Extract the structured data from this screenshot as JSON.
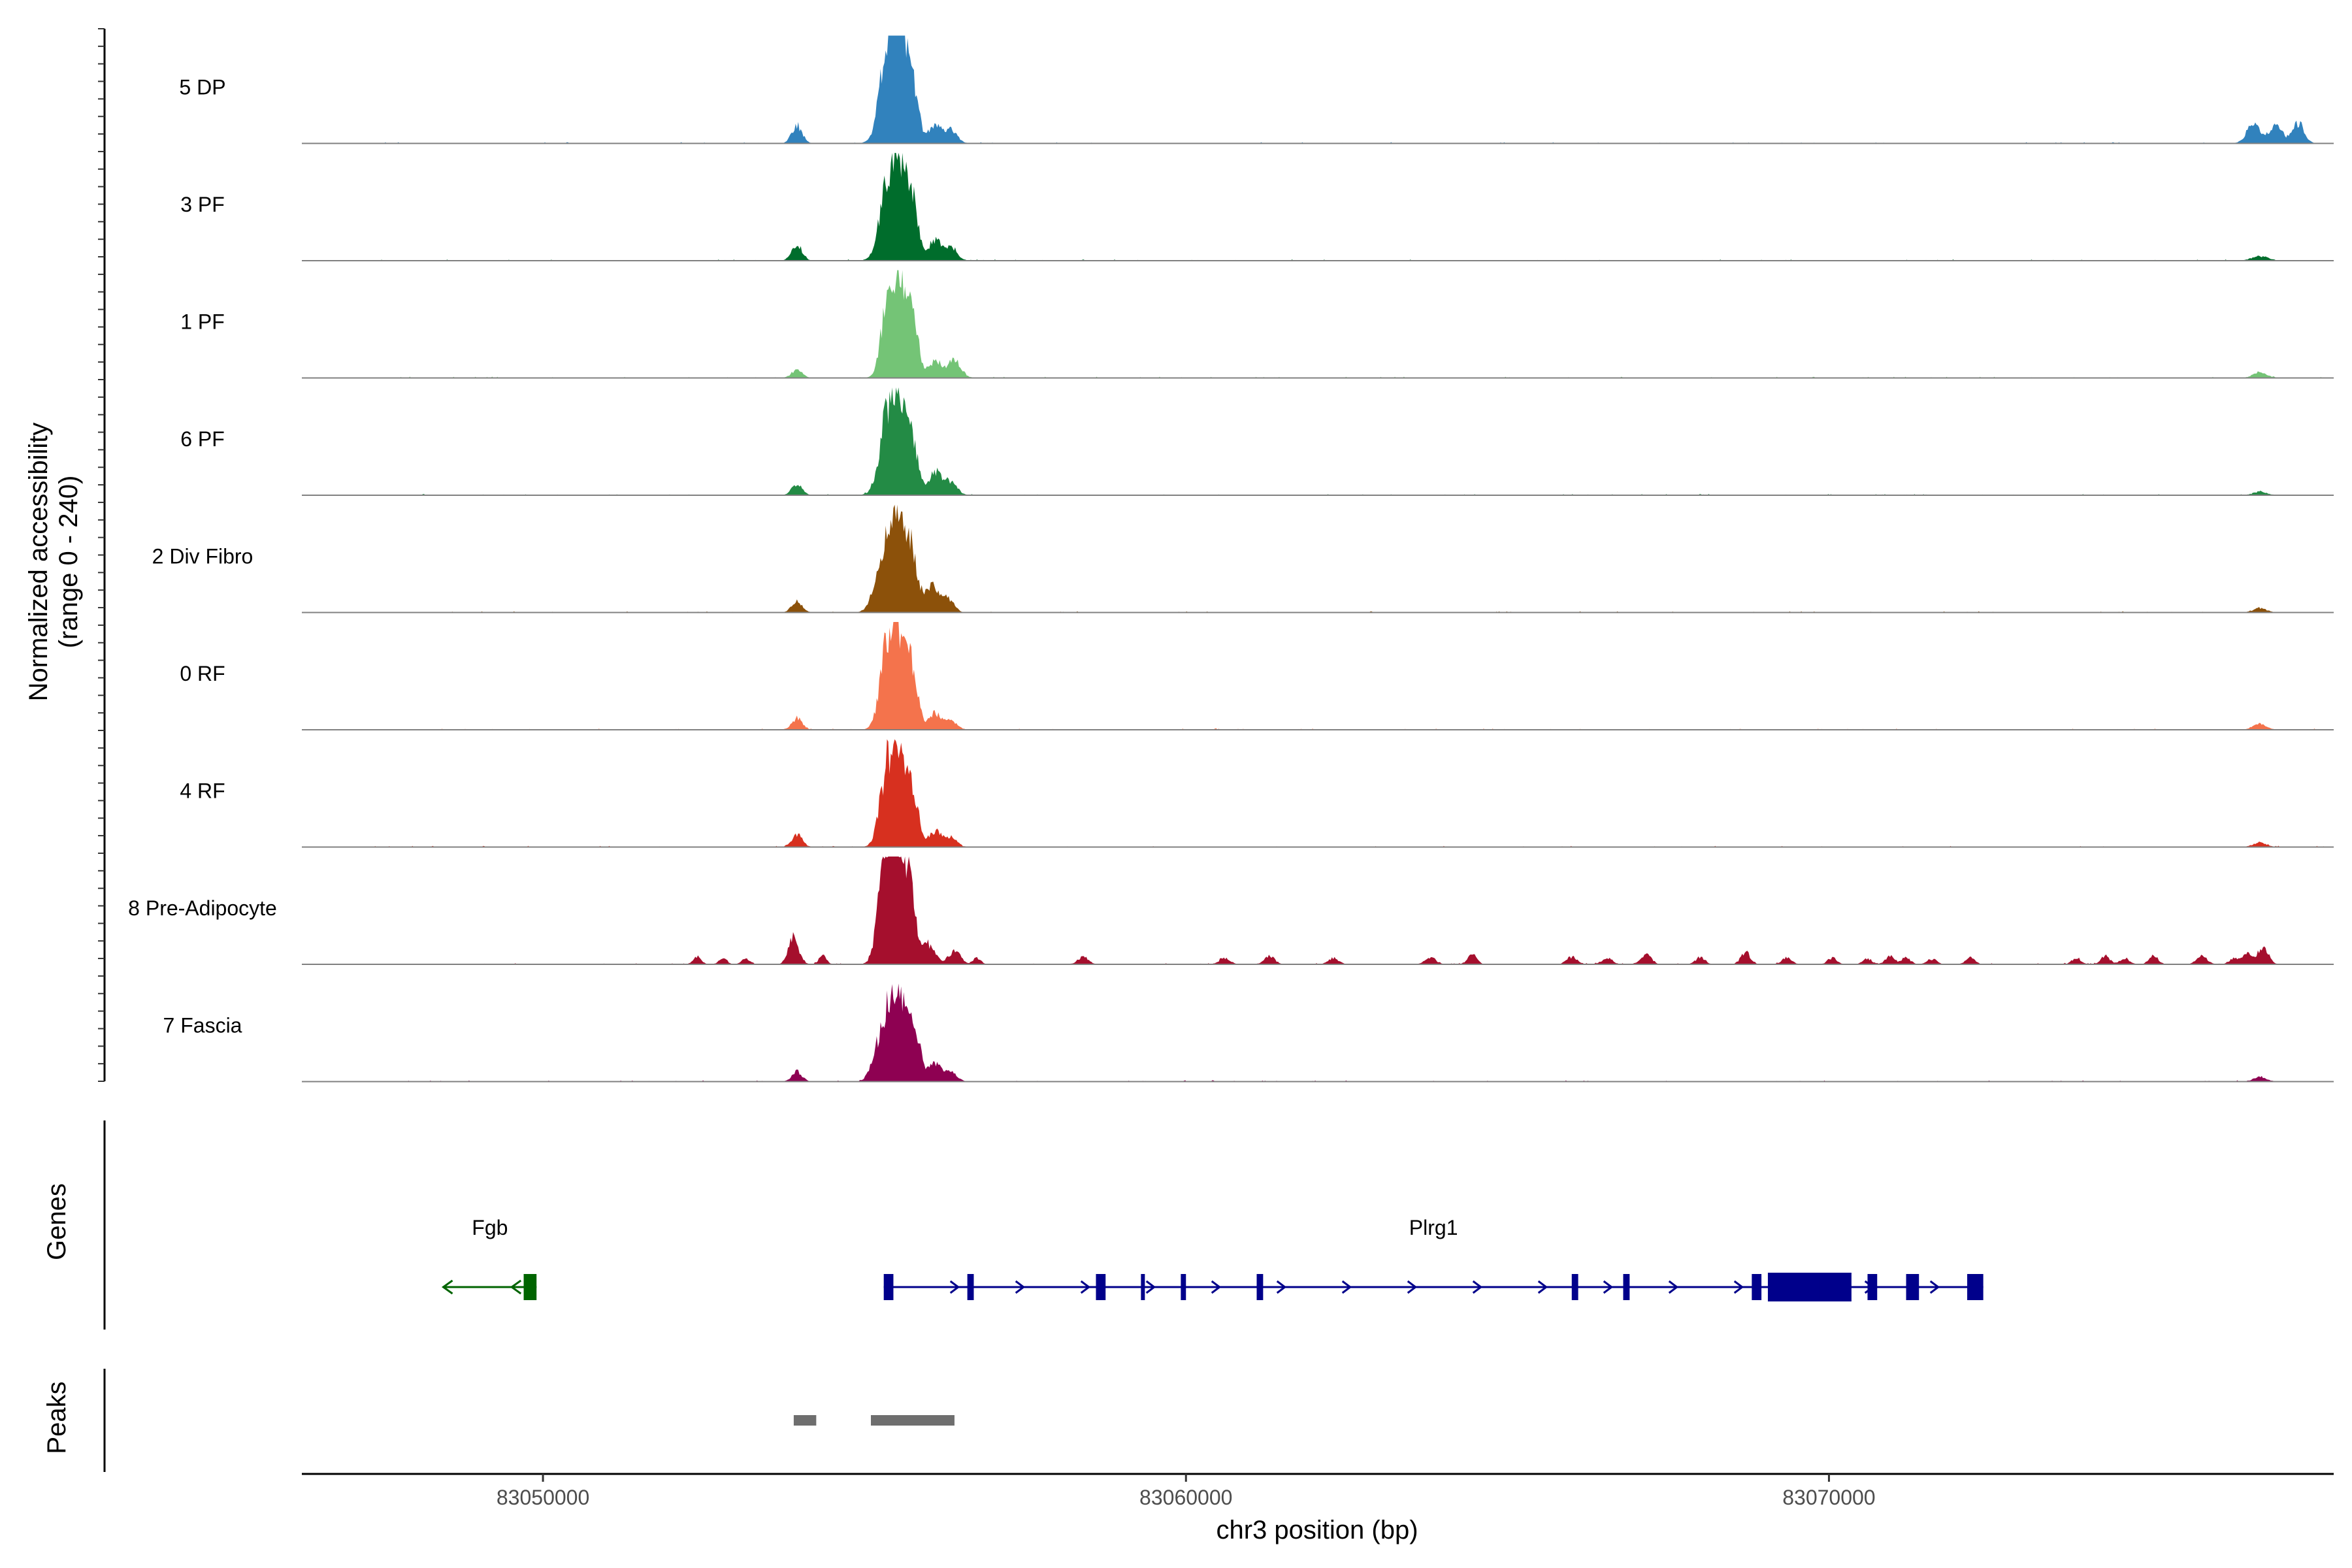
{
  "chart_data": {
    "type": "area",
    "title": "",
    "ylabel_line1": "Normalized accessibility",
    "ylabel_line2": "(range 0 - 240)",
    "ylim": [
      0,
      240
    ],
    "xlabel": "chr3 position (bp)",
    "xlim": [
      83046250,
      83077850
    ],
    "xticks": [
      83050000,
      83060000,
      83070000
    ],
    "xtick_labels": [
      "83050000",
      "83060000",
      "83070000"
    ],
    "genes_label": "Genes",
    "peaks_label": "Peaks",
    "tracks": [
      {
        "name": "5 DP",
        "color": "#3182bd",
        "peaks": [
          [
            83053950,
            40,
            80
          ],
          [
            83055350,
            190,
            120
          ],
          [
            83055550,
            210,
            110
          ],
          [
            83055750,
            120,
            90
          ],
          [
            83056100,
            40,
            100
          ],
          [
            83056350,
            30,
            90
          ],
          [
            83076600,
            45,
            100
          ],
          [
            83076950,
            40,
            100
          ],
          [
            83077300,
            45,
            90
          ]
        ]
      },
      {
        "name": "3 PF",
        "color": "#006d2c",
        "peaks": [
          [
            83053950,
            35,
            80
          ],
          [
            83055350,
            150,
            120
          ],
          [
            83055550,
            180,
            110
          ],
          [
            83055750,
            120,
            90
          ],
          [
            83056100,
            45,
            100
          ],
          [
            83056350,
            30,
            90
          ],
          [
            83076700,
            10,
            120
          ]
        ]
      },
      {
        "name": "1 PF",
        "color": "#74c476",
        "peaks": [
          [
            83053950,
            18,
            80
          ],
          [
            83055350,
            140,
            100
          ],
          [
            83055550,
            190,
            110
          ],
          [
            83055750,
            120,
            90
          ],
          [
            83056100,
            35,
            100
          ],
          [
            83056400,
            40,
            100
          ],
          [
            83076700,
            12,
            100
          ]
        ]
      },
      {
        "name": "6 PF",
        "color": "#238b45",
        "peaks": [
          [
            83053950,
            25,
            80
          ],
          [
            83055350,
            160,
            120
          ],
          [
            83055550,
            170,
            110
          ],
          [
            83055750,
            110,
            90
          ],
          [
            83056100,
            50,
            100
          ],
          [
            83056350,
            30,
            90
          ],
          [
            83076700,
            8,
            100
          ]
        ]
      },
      {
        "name": "2 Div Fibro",
        "color": "#8c510a",
        "peaks": [
          [
            83053950,
            25,
            80
          ],
          [
            83055150,
            30,
            90
          ],
          [
            83055350,
            150,
            110
          ],
          [
            83055550,
            190,
            110
          ],
          [
            83055750,
            110,
            90
          ],
          [
            83056050,
            60,
            100
          ],
          [
            83056300,
            30,
            90
          ],
          [
            83076700,
            10,
            100
          ]
        ]
      },
      {
        "name": "0 RF",
        "color": "#f4734c",
        "peaks": [
          [
            83053950,
            25,
            80
          ],
          [
            83055350,
            170,
            110
          ],
          [
            83055550,
            190,
            110
          ],
          [
            83055750,
            110,
            90
          ],
          [
            83056100,
            35,
            100
          ],
          [
            83056350,
            20,
            90
          ],
          [
            83076700,
            12,
            100
          ]
        ]
      },
      {
        "name": "4 RF",
        "color": "#d7301f",
        "peaks": [
          [
            83053950,
            28,
            80
          ],
          [
            83055350,
            160,
            110
          ],
          [
            83055550,
            180,
            110
          ],
          [
            83055750,
            110,
            90
          ],
          [
            83056100,
            35,
            100
          ],
          [
            83056350,
            20,
            90
          ],
          [
            83076700,
            10,
            100
          ]
        ]
      },
      {
        "name": "8 Pre-Adipocyte",
        "color": "#a50f2d",
        "peaks": [
          [
            83052400,
            18,
            60
          ],
          [
            83052800,
            14,
            60
          ],
          [
            83053150,
            14,
            60
          ],
          [
            83053900,
            60,
            80
          ],
          [
            83054350,
            18,
            60
          ],
          [
            83055300,
            200,
            100
          ],
          [
            83055500,
            220,
            110
          ],
          [
            83055700,
            170,
            90
          ],
          [
            83056000,
            45,
            100
          ],
          [
            83056400,
            30,
            90
          ],
          [
            83056750,
            14,
            60
          ],
          [
            83058400,
            16,
            80
          ],
          [
            83060600,
            14,
            80
          ],
          [
            83061300,
            18,
            80
          ],
          [
            83062300,
            14,
            80
          ],
          [
            83063800,
            16,
            80
          ],
          [
            83064450,
            22,
            70
          ],
          [
            83066000,
            16,
            80
          ],
          [
            83066550,
            14,
            80
          ],
          [
            83067150,
            22,
            80
          ],
          [
            83068000,
            16,
            70
          ],
          [
            83068700,
            28,
            70
          ],
          [
            83069350,
            16,
            70
          ],
          [
            83070050,
            14,
            70
          ],
          [
            83070600,
            12,
            70
          ],
          [
            83070950,
            18,
            70
          ],
          [
            83071200,
            14,
            70
          ],
          [
            83071600,
            12,
            70
          ],
          [
            83072200,
            14,
            70
          ],
          [
            83073850,
            14,
            70
          ],
          [
            83074300,
            18,
            70
          ],
          [
            83074600,
            14,
            70
          ],
          [
            83075050,
            18,
            70
          ],
          [
            83075800,
            18,
            80
          ],
          [
            83076300,
            14,
            70
          ],
          [
            83076500,
            22,
            70
          ],
          [
            83076750,
            40,
            80
          ]
        ]
      },
      {
        "name": "7 Fascia",
        "color": "#8e0152",
        "peaks": [
          [
            83053950,
            22,
            80
          ],
          [
            83055200,
            60,
            100
          ],
          [
            83055400,
            150,
            110
          ],
          [
            83055600,
            150,
            110
          ],
          [
            83055800,
            80,
            90
          ],
          [
            83056100,
            40,
            100
          ],
          [
            83056350,
            20,
            90
          ],
          [
            83076700,
            10,
            100
          ]
        ]
      }
    ],
    "genes": [
      {
        "name": "Fgb",
        "color": "#006400",
        "strand": "-",
        "start": 83048450,
        "end": 83049900,
        "exons": [
          [
            83049700,
            83049900
          ]
        ]
      },
      {
        "name": "Plrg1",
        "color": "#00008b",
        "strand": "+",
        "start": 83055300,
        "end": 83072400,
        "exons": [
          [
            83055300,
            83055450
          ],
          [
            83056600,
            83056700
          ],
          [
            83058600,
            83058750
          ],
          [
            83059300,
            83059350
          ],
          [
            83059920,
            83060000
          ],
          [
            83061100,
            83061200
          ],
          [
            83066000,
            83066100
          ],
          [
            83066800,
            83066900
          ],
          [
            83068800,
            83068950
          ],
          [
            83069050,
            83069900
          ],
          [
            83069850,
            83070350
          ],
          [
            83070600,
            83070750
          ],
          [
            83071200,
            83071400
          ],
          [
            83072150,
            83072400
          ]
        ]
      }
    ],
    "peaks": [
      [
        83053900,
        83054250
      ],
      [
        83055100,
        83056400
      ]
    ]
  }
}
